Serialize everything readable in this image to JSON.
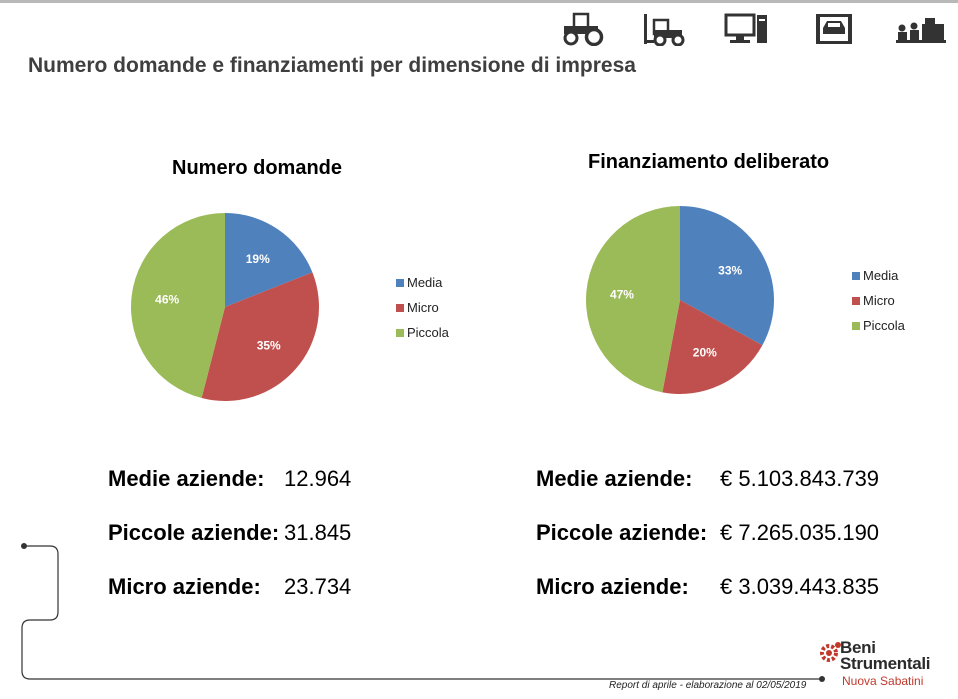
{
  "header": {
    "title": "Numero domande e finanziamenti per dimensione di impresa",
    "icons": [
      "tractor-icon",
      "forklift-icon",
      "computer-icon",
      "workshop-lift-icon",
      "workers-icon"
    ]
  },
  "chart_data": [
    {
      "type": "pie",
      "title": "Numero domande",
      "categories": [
        "Media",
        "Micro",
        "Piccola"
      ],
      "values": [
        19,
        35,
        46
      ],
      "labels": [
        "19%",
        "35%",
        "46%"
      ],
      "colors": [
        "#4f81bd",
        "#c0504d",
        "#9bbb59"
      ],
      "legend_position": "right"
    },
    {
      "type": "pie",
      "title": "Finanziamento deliberato",
      "categories": [
        "Media",
        "Micro",
        "Piccola"
      ],
      "values": [
        33,
        20,
        47
      ],
      "labels": [
        "33%",
        "20%",
        "47%"
      ],
      "colors": [
        "#4f81bd",
        "#c0504d",
        "#9bbb59"
      ],
      "legend_position": "right"
    }
  ],
  "stats_left": [
    {
      "label": "Medie aziende:",
      "value": "12.964"
    },
    {
      "label": "Piccole aziende:",
      "value": "31.845"
    },
    {
      "label": "Micro aziende:",
      "value": "23.734"
    }
  ],
  "stats_right": [
    {
      "label": "Medie aziende:",
      "value": "€ 5.103.843.739"
    },
    {
      "label": "Piccole aziende:",
      "value": "€ 7.265.035.190"
    },
    {
      "label": "Micro aziende:",
      "value": "€ 3.039.443.835"
    }
  ],
  "footer": {
    "note": "Report di aprile - elaborazione al 02/05/2019",
    "brand_line1": "Beni",
    "brand_line2": "Strumentali",
    "brand_line3": "Nuova Sabatini"
  }
}
